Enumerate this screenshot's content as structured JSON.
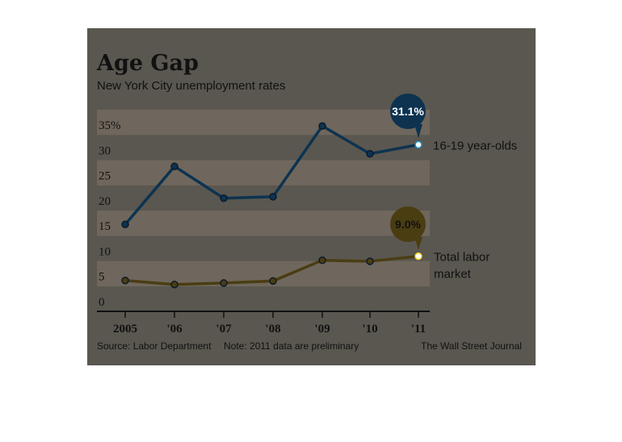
{
  "chart_data": {
    "type": "line",
    "title": "Age Gap",
    "subtitle": "New York City unemployment rates",
    "x": [
      "2005",
      "'06",
      "'07",
      "'08",
      "'09",
      "'10",
      "'11"
    ],
    "ylim": [
      0,
      35
    ],
    "yticks": [
      "35%",
      "30",
      "25",
      "20",
      "15",
      "10",
      "5",
      "0"
    ],
    "series": [
      {
        "name": "16-19 year-olds",
        "values": [
          15.3,
          26.8,
          20.5,
          20.8,
          34.8,
          29.3,
          31.1
        ],
        "color": "#0d3350",
        "highlight": "#1e8ec9",
        "callout": "31.1%"
      },
      {
        "name": "Total labor market",
        "values": [
          4.2,
          3.4,
          3.7,
          4.1,
          8.2,
          8.0,
          9.0
        ],
        "color": "#4a3d12",
        "highlight": "#f2d21b",
        "callout": "9.0%"
      }
    ],
    "label_lines": {
      "16-19 year-olds": [
        "16-19 year-olds"
      ],
      "Total labor market": [
        "Total labor",
        "market"
      ]
    },
    "source": "Source: Labor Department",
    "note": "Note: 2011 data are preliminary",
    "credit": "The Wall Street Journal",
    "grid": "horizontal bands",
    "colors": {
      "background": "#5a5750",
      "band": "#6f675d",
      "axis": "#111111"
    }
  }
}
